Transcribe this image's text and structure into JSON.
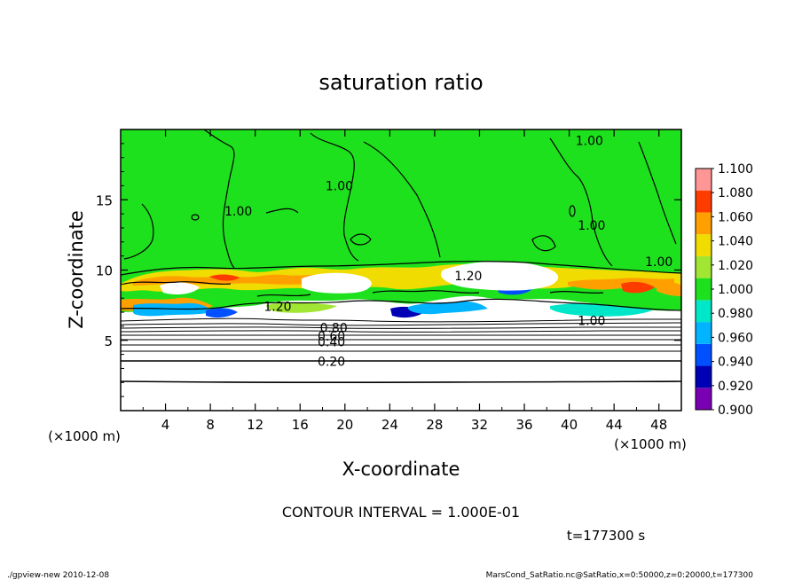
{
  "chart_data": {
    "type": "heatmap",
    "title": "saturation ratio",
    "xlabel": "X-coordinate",
    "ylabel": "Z-coordinate",
    "x_unit": "(×1000 m)",
    "y_unit": "(×1000 m)",
    "xlim": [
      0,
      50
    ],
    "ylim": [
      0,
      20
    ],
    "x_ticks": [
      4,
      8,
      12,
      16,
      20,
      24,
      28,
      32,
      36,
      40,
      44,
      48
    ],
    "y_ticks": [
      5,
      10,
      15
    ],
    "contour_interval_text": "CONTOUR INTERVAL = 1.000E-01",
    "time_text": "t=177300 s",
    "contour_labels": [
      {
        "text": "1.00",
        "x": 41.8,
        "y": 19.2
      },
      {
        "text": "1.00",
        "x": 10.5,
        "y": 14.2
      },
      {
        "text": "1.00",
        "x": 19.5,
        "y": 16.0
      },
      {
        "text": "1.00",
        "x": 42.0,
        "y": 13.2
      },
      {
        "text": "1.00",
        "x": 48.0,
        "y": 10.6
      },
      {
        "text": "1.20",
        "x": 14.0,
        "y": 7.4
      },
      {
        "text": "1.20",
        "x": 31.0,
        "y": 9.6
      },
      {
        "text": "1.00",
        "x": 42.0,
        "y": 6.4
      },
      {
        "text": "0.80",
        "x": 19.0,
        "y": 5.9
      },
      {
        "text": "0.60",
        "x": 18.8,
        "y": 5.3
      },
      {
        "text": "0.40",
        "x": 18.8,
        "y": 4.9
      },
      {
        "text": "0.20",
        "x": 18.8,
        "y": 3.5
      }
    ],
    "colorbar": {
      "levels": [
        0.9,
        0.92,
        0.94,
        0.96,
        0.98,
        1.0,
        1.02,
        1.04,
        1.06,
        1.08,
        1.1
      ],
      "labels": [
        "0.900",
        "0.920",
        "0.940",
        "0.960",
        "0.980",
        "1.000",
        "1.020",
        "1.040",
        "1.060",
        "1.080",
        "1.100"
      ],
      "colors": [
        "#7a00b4",
        "#0000b4",
        "#0050ff",
        "#00b4ff",
        "#00e6c8",
        "#1ee11e",
        "#a0e632",
        "#f0dc00",
        "#ffa000",
        "#ff3c00",
        "#ff9696"
      ]
    },
    "field_description_colors": {
      "background": "#1ee11e",
      "subsaturated": "#ffffff"
    }
  },
  "footer": {
    "left": "./gpview-new   2010-12-08",
    "right": "MarsCond_SatRatio.nc@SatRatio,x=0:50000,z=0:20000,t=177300"
  }
}
